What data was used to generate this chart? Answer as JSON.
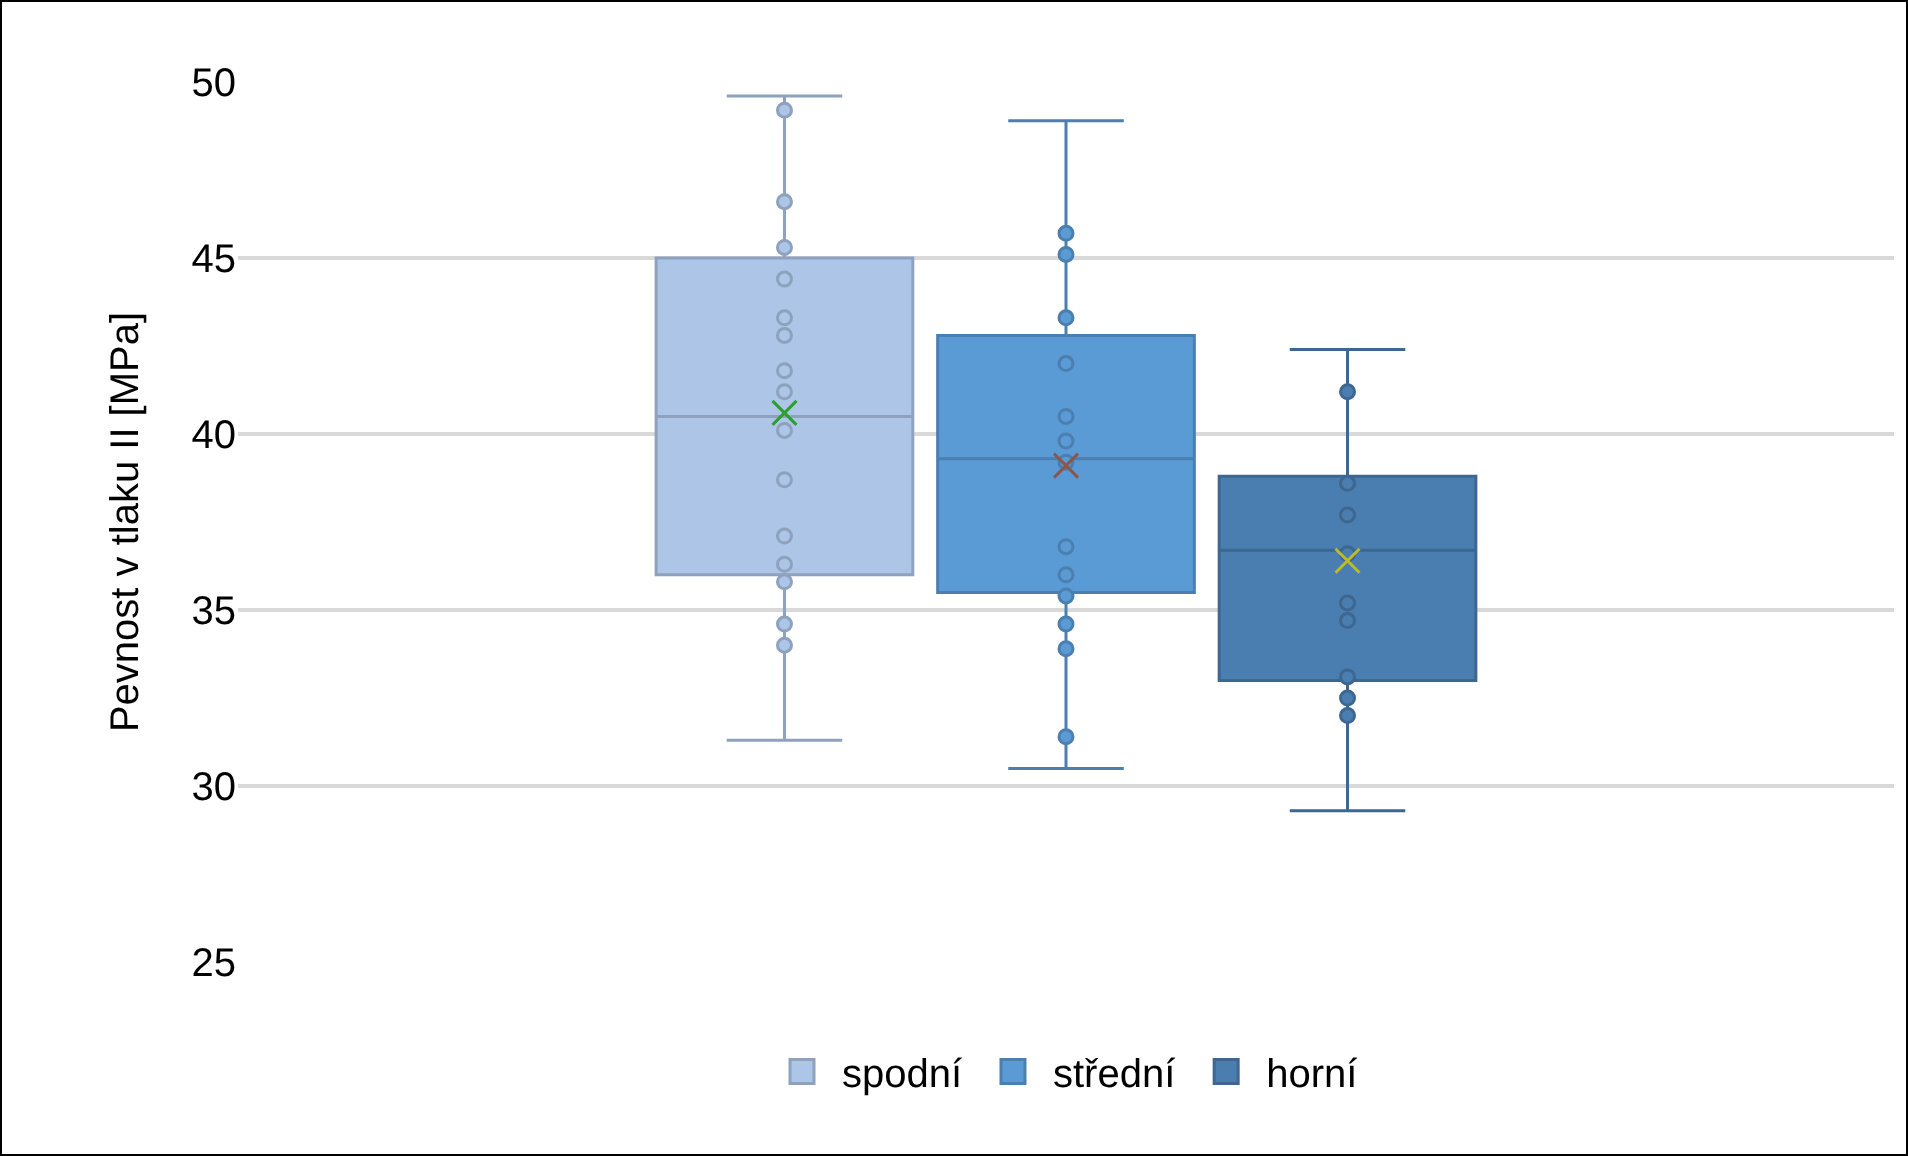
{
  "chart_data": {
    "type": "box",
    "ylabel": "Pevnost v tlaku II [MPa]",
    "categories": [
      null
    ],
    "ylim": [
      25,
      50
    ],
    "yticks": [
      25,
      30,
      35,
      40,
      45,
      50
    ],
    "grid": "y",
    "legend": "bottom",
    "marker": "circle",
    "series": [
      {
        "name": "spodní",
        "color": "#adc5e7",
        "boxes": [
          {
            "low": 31.3,
            "q1": 36.0,
            "median": 40.5,
            "q3": 45.0,
            "high": 49.6,
            "mean": 40.6,
            "outliers": [
              49.2,
              46.6,
              45.3,
              44.4,
              43.3,
              42.8,
              41.8,
              41.2,
              40.1,
              38.7,
              37.1,
              36.3,
              35.8,
              34.6,
              34.0
            ]
          }
        ]
      },
      {
        "name": "střední",
        "color": "#5b9bd5",
        "boxes": [
          {
            "low": 30.5,
            "q1": 35.5,
            "median": 39.3,
            "q3": 42.8,
            "high": 48.9,
            "mean": 39.1,
            "outliers": [
              45.7,
              45.1,
              43.3,
              42.0,
              40.5,
              39.8,
              39.2,
              36.8,
              36.0,
              35.4,
              34.6,
              33.9,
              31.4
            ]
          }
        ]
      },
      {
        "name": "horní",
        "color": "#4a7eb0",
        "boxes": [
          {
            "low": 29.3,
            "q1": 33.0,
            "median": 36.7,
            "q3": 38.8,
            "high": 42.4,
            "mean": 36.4,
            "outliers": [
              41.2,
              38.6,
              37.7,
              36.6,
              35.2,
              34.7,
              33.1,
              32.5,
              32.0
            ]
          }
        ]
      }
    ]
  }
}
